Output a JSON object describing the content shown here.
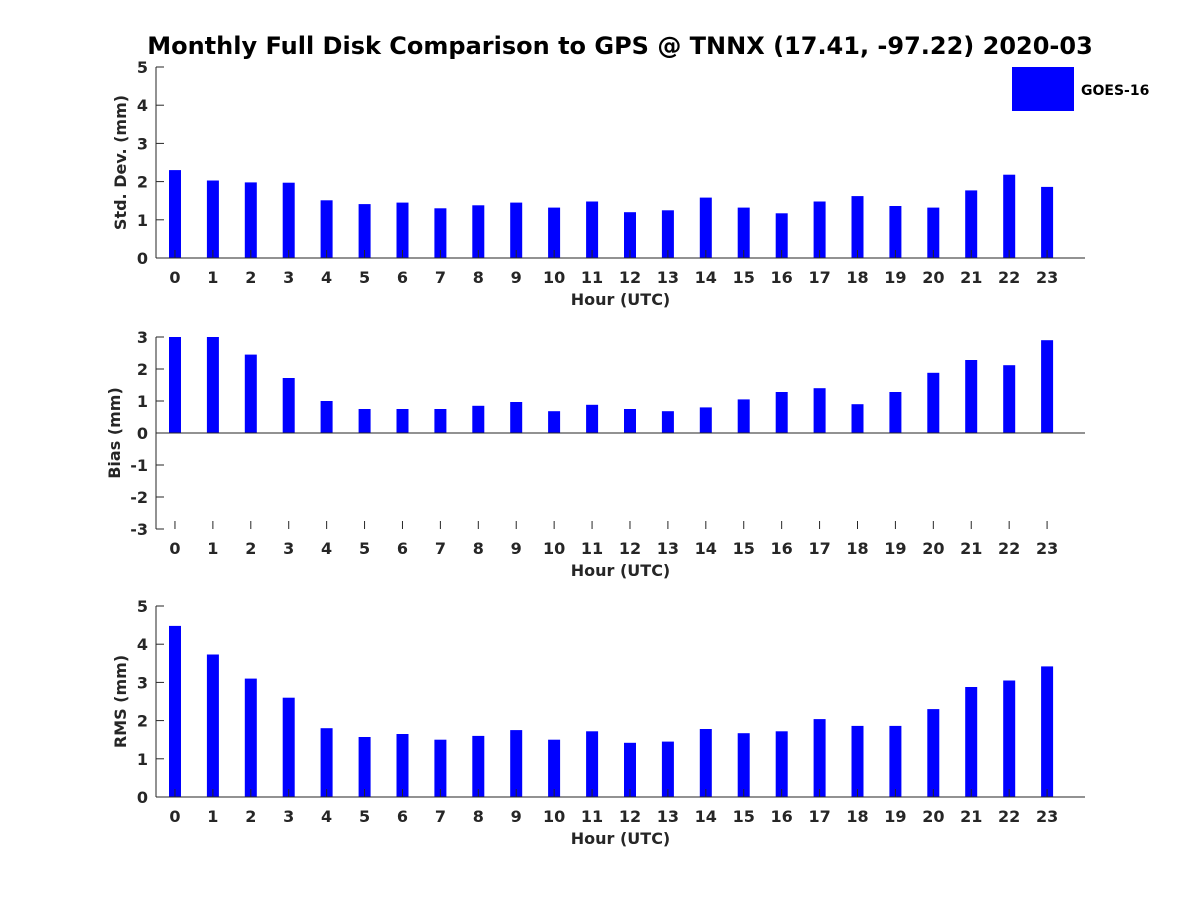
{
  "figure_title": "Monthly Full Disk Comparison to GPS @ TNNX (17.41, -97.22) 2020-03",
  "legend": {
    "label": "GOES-16",
    "color": "#0000ff"
  },
  "chart_data": [
    {
      "type": "bar",
      "categories": [
        "0",
        "1",
        "2",
        "3",
        "4",
        "5",
        "6",
        "7",
        "8",
        "9",
        "10",
        "11",
        "12",
        "13",
        "14",
        "15",
        "16",
        "17",
        "18",
        "19",
        "20",
        "21",
        "22",
        "23"
      ],
      "series": [
        {
          "name": "GOES-16",
          "values": [
            2.3,
            2.03,
            1.98,
            1.97,
            1.51,
            1.41,
            1.45,
            1.3,
            1.38,
            1.45,
            1.32,
            1.48,
            1.2,
            1.25,
            1.58,
            1.32,
            1.17,
            1.48,
            1.62,
            1.36,
            1.32,
            1.77,
            2.18,
            1.86
          ]
        }
      ],
      "xlabel": "Hour (UTC)",
      "ylabel": "Std. Dev. (mm)",
      "ylim": [
        0,
        5
      ],
      "yticks": [
        "0",
        "1",
        "2",
        "3",
        "4",
        "5"
      ],
      "grid": false,
      "legend_position": "top-right"
    },
    {
      "type": "bar",
      "categories": [
        "0",
        "1",
        "2",
        "3",
        "4",
        "5",
        "6",
        "7",
        "8",
        "9",
        "10",
        "11",
        "12",
        "13",
        "14",
        "15",
        "16",
        "17",
        "18",
        "19",
        "20",
        "21",
        "22",
        "23"
      ],
      "series": [
        {
          "name": "GOES-16",
          "values": [
            3.0,
            3.0,
            2.45,
            1.72,
            1.0,
            0.75,
            0.75,
            0.75,
            0.85,
            0.97,
            0.68,
            0.88,
            0.75,
            0.68,
            0.8,
            1.05,
            1.28,
            1.4,
            0.9,
            1.28,
            1.88,
            2.28,
            2.12,
            2.9
          ]
        }
      ],
      "xlabel": "Hour (UTC)",
      "ylabel": "Bias (mm)",
      "ylim": [
        -3,
        3
      ],
      "yticks": [
        "-3",
        "-2",
        "-1",
        "0",
        "1",
        "2",
        "3"
      ],
      "grid": false
    },
    {
      "type": "bar",
      "categories": [
        "0",
        "1",
        "2",
        "3",
        "4",
        "5",
        "6",
        "7",
        "8",
        "9",
        "10",
        "11",
        "12",
        "13",
        "14",
        "15",
        "16",
        "17",
        "18",
        "19",
        "20",
        "21",
        "22",
        "23"
      ],
      "series": [
        {
          "name": "GOES-16",
          "values": [
            4.48,
            3.73,
            3.1,
            2.6,
            1.8,
            1.57,
            1.65,
            1.5,
            1.6,
            1.75,
            1.5,
            1.72,
            1.42,
            1.45,
            1.78,
            1.67,
            1.72,
            2.04,
            1.86,
            1.86,
            2.3,
            2.88,
            3.05,
            3.42
          ]
        }
      ],
      "xlabel": "Hour (UTC)",
      "ylabel": "RMS (mm)",
      "ylim": [
        0,
        5
      ],
      "yticks": [
        "0",
        "1",
        "2",
        "3",
        "4",
        "5"
      ],
      "grid": false
    }
  ]
}
